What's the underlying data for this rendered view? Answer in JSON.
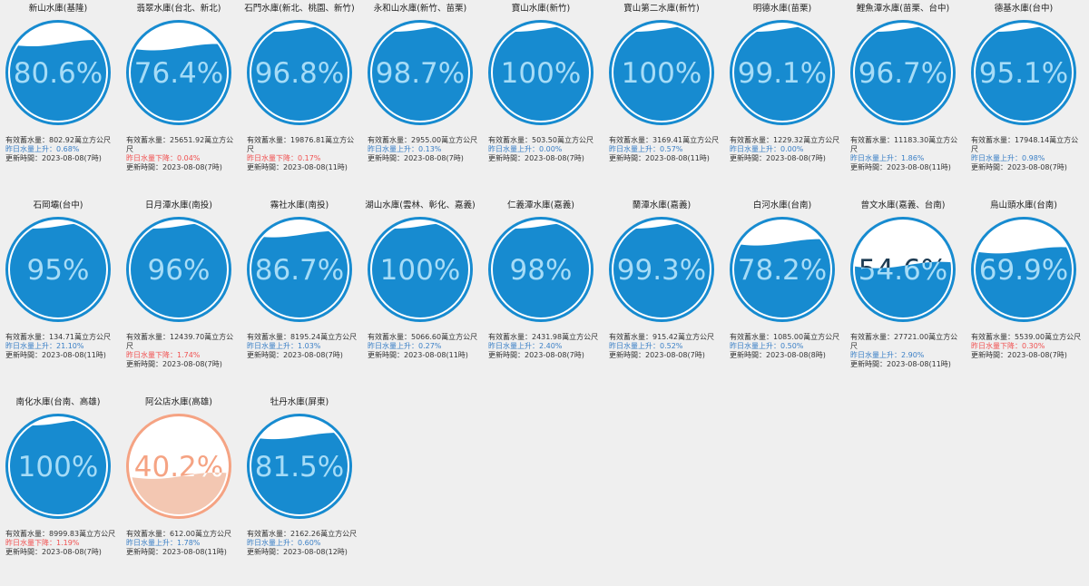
{
  "reservoirs": [
    {
      "name": "新山水庫(基隆)",
      "percent": "80.6%",
      "fill": 0.806,
      "volume": "有效蓄水量：802.92萬立方公尺",
      "change": "昨日水量上升：0.68%",
      "trend": "up",
      "updated": "更新時間：2023-08-08(7時)",
      "color": "blue"
    },
    {
      "name": "翡翠水庫(台北、新北)",
      "percent": "76.4%",
      "fill": 0.764,
      "volume": "有效蓄水量：25651.92萬立方公尺",
      "change": "昨日水量下降：0.04%",
      "trend": "down",
      "updated": "更新時間：2023-08-08(7時)",
      "color": "blue"
    },
    {
      "name": "石門水庫(新北、桃園、新竹)",
      "percent": "96.8%",
      "fill": 0.968,
      "volume": "有效蓄水量：19876.81萬立方公尺",
      "change": "昨日水量下降：0.17%",
      "trend": "down",
      "updated": "更新時間：2023-08-08(11時)",
      "color": "blue"
    },
    {
      "name": "永和山水庫(新竹、苗栗)",
      "percent": "98.7%",
      "fill": 0.987,
      "volume": "有效蓄水量：2955.00萬立方公尺",
      "change": "昨日水量上升：0.13%",
      "trend": "up",
      "updated": "更新時間：2023-08-08(7時)",
      "color": "blue"
    },
    {
      "name": "寶山水庫(新竹)",
      "percent": "100%",
      "fill": 1.0,
      "volume": "有效蓄水量：503.50萬立方公尺",
      "change": "昨日水量上升：0.00%",
      "trend": "up",
      "updated": "更新時間：2023-08-08(7時)",
      "color": "blue"
    },
    {
      "name": "寶山第二水庫(新竹)",
      "percent": "100%",
      "fill": 1.0,
      "volume": "有效蓄水量：3169.41萬立方公尺",
      "change": "昨日水量上升：0.57%",
      "trend": "up",
      "updated": "更新時間：2023-08-08(11時)",
      "color": "blue"
    },
    {
      "name": "明德水庫(苗栗)",
      "percent": "99.1%",
      "fill": 0.991,
      "volume": "有效蓄水量：1229.32萬立方公尺",
      "change": "昨日水量上升：0.00%",
      "trend": "up",
      "updated": "更新時間：2023-08-08(7時)",
      "color": "blue"
    },
    {
      "name": "鯉魚潭水庫(苗栗、台中)",
      "percent": "96.7%",
      "fill": 0.967,
      "volume": "有效蓄水量：11183.30萬立方公尺",
      "change": "昨日水量上升：1.86%",
      "trend": "up",
      "updated": "更新時間：2023-08-08(11時)",
      "color": "blue"
    },
    {
      "name": "德基水庫(台中)",
      "percent": "95.1%",
      "fill": 0.951,
      "volume": "有效蓄水量：17948.14萬立方公尺",
      "change": "昨日水量上升：0.98%",
      "trend": "up",
      "updated": "更新時間：2023-08-08(7時)",
      "color": "blue"
    },
    {
      "name": "石岡壩(台中)",
      "percent": "95%",
      "fill": 0.95,
      "volume": "有效蓄水量：134.71萬立方公尺",
      "change": "昨日水量上升：21.10%",
      "trend": "up",
      "updated": "更新時間：2023-08-08(11時)",
      "color": "blue"
    },
    {
      "name": "日月潭水庫(南投)",
      "percent": "96%",
      "fill": 0.96,
      "volume": "有效蓄水量：12439.70萬立方公尺",
      "change": "昨日水量下降：1.74%",
      "trend": "down",
      "updated": "更新時間：2023-08-08(7時)",
      "color": "blue"
    },
    {
      "name": "霧社水庫(南投)",
      "percent": "86.7%",
      "fill": 0.867,
      "volume": "有效蓄水量：8195.24萬立方公尺",
      "change": "昨日水量上升：1.03%",
      "trend": "up",
      "updated": "更新時間：2023-08-08(7時)",
      "color": "blue"
    },
    {
      "name": "湖山水庫(雲林、彰化、嘉義)",
      "percent": "100%",
      "fill": 1.0,
      "volume": "有效蓄水量：5066.60萬立方公尺",
      "change": "昨日水量上升：0.27%",
      "trend": "up",
      "updated": "更新時間：2023-08-08(11時)",
      "color": "blue"
    },
    {
      "name": "仁義潭水庫(嘉義)",
      "percent": "98%",
      "fill": 0.98,
      "volume": "有效蓄水量：2431.98萬立方公尺",
      "change": "昨日水量上升：2.40%",
      "trend": "up",
      "updated": "更新時間：2023-08-08(7時)",
      "color": "blue"
    },
    {
      "name": "蘭潭水庫(嘉義)",
      "percent": "99.3%",
      "fill": 0.993,
      "volume": "有效蓄水量：915.42萬立方公尺",
      "change": "昨日水量上升：0.52%",
      "trend": "up",
      "updated": "更新時間：2023-08-08(7時)",
      "color": "blue"
    },
    {
      "name": "白河水庫(台南)",
      "percent": "78.2%",
      "fill": 0.782,
      "volume": "有效蓄水量：1085.00萬立方公尺",
      "change": "昨日水量上升：0.50%",
      "trend": "up",
      "updated": "更新時間：2023-08-08(8時)",
      "color": "blue"
    },
    {
      "name": "曾文水庫(嘉義、台南)",
      "percent": "54.6%",
      "fill": 0.546,
      "volume": "有效蓄水量：27721.00萬立方公尺",
      "change": "昨日水量上升：2.90%",
      "trend": "up",
      "updated": "更新時間：2023-08-08(11時)",
      "color": "blue"
    },
    {
      "name": "烏山頭水庫(台南)",
      "percent": "69.9%",
      "fill": 0.699,
      "volume": "有效蓄水量：5539.00萬立方公尺",
      "change": "昨日水量下降：0.30%",
      "trend": "down",
      "updated": "更新時間：2023-08-08(7時)",
      "color": "blue"
    },
    {
      "name": "南化水庫(台南、高雄)",
      "percent": "100%",
      "fill": 1.0,
      "volume": "有效蓄水量：8999.83萬立方公尺",
      "change": "昨日水量下降：1.19%",
      "trend": "down",
      "updated": "更新時間：2023-08-08(7時)",
      "color": "blue"
    },
    {
      "name": "阿公店水庫(高雄)",
      "percent": "40.2%",
      "fill": 0.402,
      "volume": "有效蓄水量：612.00萬立方公尺",
      "change": "昨日水量上升：1.78%",
      "trend": "up",
      "updated": "更新時間：2023-08-08(11時)",
      "color": "orange"
    },
    {
      "name": "牡丹水庫(屏東)",
      "percent": "81.5%",
      "fill": 0.815,
      "volume": "有效蓄水量：2162.26萬立方公尺",
      "change": "昨日水量上升：0.60%",
      "trend": "up",
      "updated": "更新時間：2023-08-08(12時)",
      "color": "blue"
    }
  ],
  "palette": {
    "blue": {
      "ring": "#178bd0",
      "water": "#178bd0",
      "text_over": "#a6dcf7",
      "text_dry": "#178bd0"
    },
    "orange": {
      "ring": "#f5a383",
      "water": "#f3c7b2",
      "text_over": "#ffffff",
      "text_dry": "#f5a383"
    },
    "up_color": "#3a7fc6",
    "down_color": "#f05050"
  }
}
